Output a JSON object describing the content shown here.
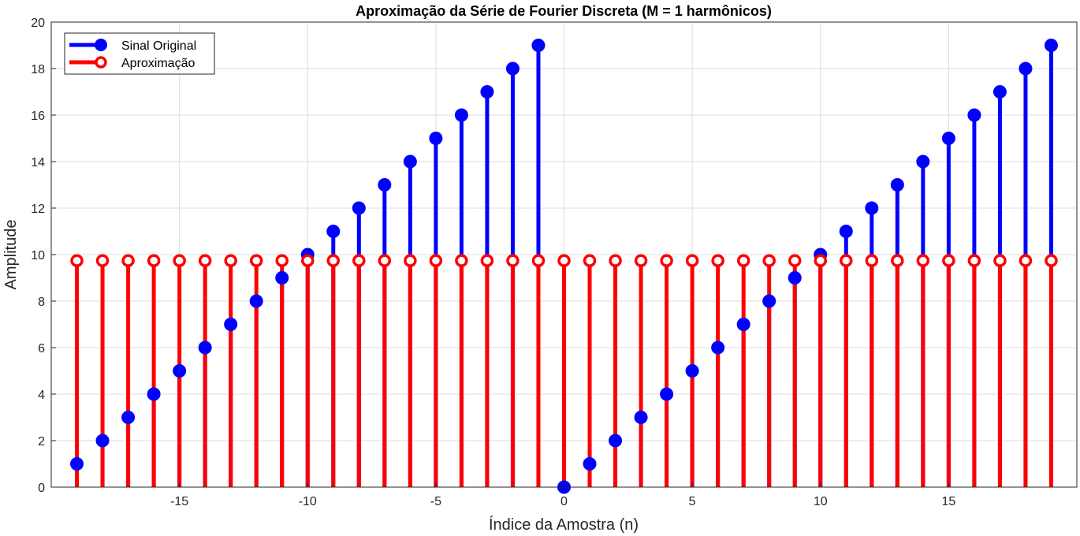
{
  "chart_data": {
    "type": "stem",
    "title": "Aproximação da Série de Fourier Discreta (M = 1 harmônicos)",
    "xlabel": "Índice da Amostra (n)",
    "ylabel": "Amplitude",
    "xlim": [
      -20,
      20
    ],
    "ylim": [
      0,
      20
    ],
    "xticks": [
      -15,
      -10,
      -5,
      0,
      5,
      10,
      15
    ],
    "yticks": [
      0,
      2,
      4,
      6,
      8,
      10,
      12,
      14,
      16,
      18,
      20
    ],
    "grid": true,
    "legend_position": "top-left",
    "x": [
      -19,
      -18,
      -17,
      -16,
      -15,
      -14,
      -13,
      -12,
      -11,
      -10,
      -9,
      -8,
      -7,
      -6,
      -5,
      -4,
      -3,
      -2,
      -1,
      0,
      1,
      2,
      3,
      4,
      5,
      6,
      7,
      8,
      9,
      10,
      11,
      12,
      13,
      14,
      15,
      16,
      17,
      18,
      19
    ],
    "series": [
      {
        "name": "Sinal Original",
        "color": "#0000ff",
        "marker": "filled-circle",
        "values": [
          1,
          2,
          3,
          4,
          5,
          6,
          7,
          8,
          9,
          10,
          11,
          12,
          13,
          14,
          15,
          16,
          17,
          18,
          19,
          0,
          1,
          2,
          3,
          4,
          5,
          6,
          7,
          8,
          9,
          10,
          11,
          12,
          13,
          14,
          15,
          16,
          17,
          18,
          19
        ]
      },
      {
        "name": "Aproximação",
        "color": "#ff0000",
        "marker": "open-circle",
        "values": [
          9.74,
          9.74,
          9.74,
          9.74,
          9.74,
          9.74,
          9.74,
          9.74,
          9.74,
          9.74,
          9.74,
          9.74,
          9.74,
          9.74,
          9.74,
          9.74,
          9.74,
          9.74,
          9.74,
          9.74,
          9.74,
          9.74,
          9.74,
          9.74,
          9.74,
          9.74,
          9.74,
          9.74,
          9.74,
          9.74,
          9.74,
          9.74,
          9.74,
          9.74,
          9.74,
          9.74,
          9.74,
          9.74,
          9.74
        ]
      }
    ]
  }
}
